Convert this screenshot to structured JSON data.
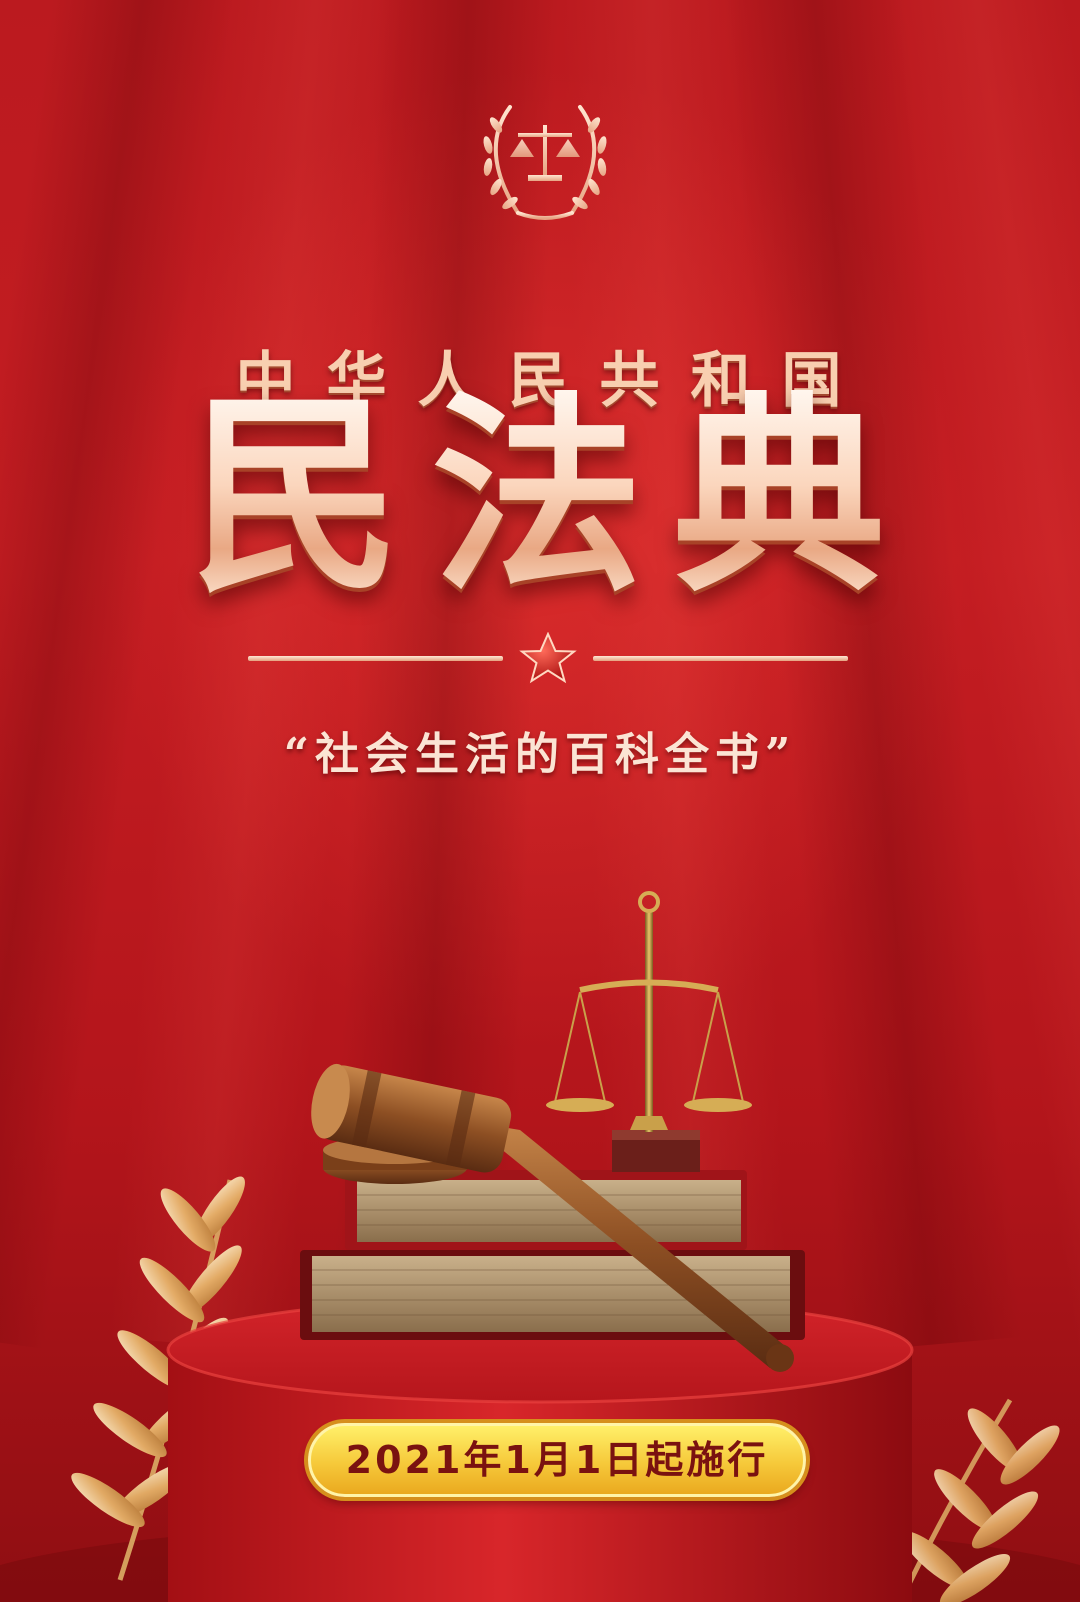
{
  "poster": {
    "nation_name": "中华人民共和国",
    "title": "民法典",
    "motto": "“社会生活的百科全书”",
    "effective_date": "2021年1月1日起施行"
  },
  "colors": {
    "background": "#c41d22",
    "title_gold": "#fbd6bd",
    "star_red": "#d41a1a",
    "pill_yellow": "#f6c93a",
    "pill_text": "#7a1210"
  },
  "icons": {
    "emblem": "scales-of-justice-laurel-emblem",
    "divider_star": "five-pointed-star-icon",
    "gavel": "judge-gavel-icon",
    "scales": "balance-scale-icon",
    "books": "book-stack-icon",
    "leaves": "golden-laurel-leaf-icon"
  }
}
